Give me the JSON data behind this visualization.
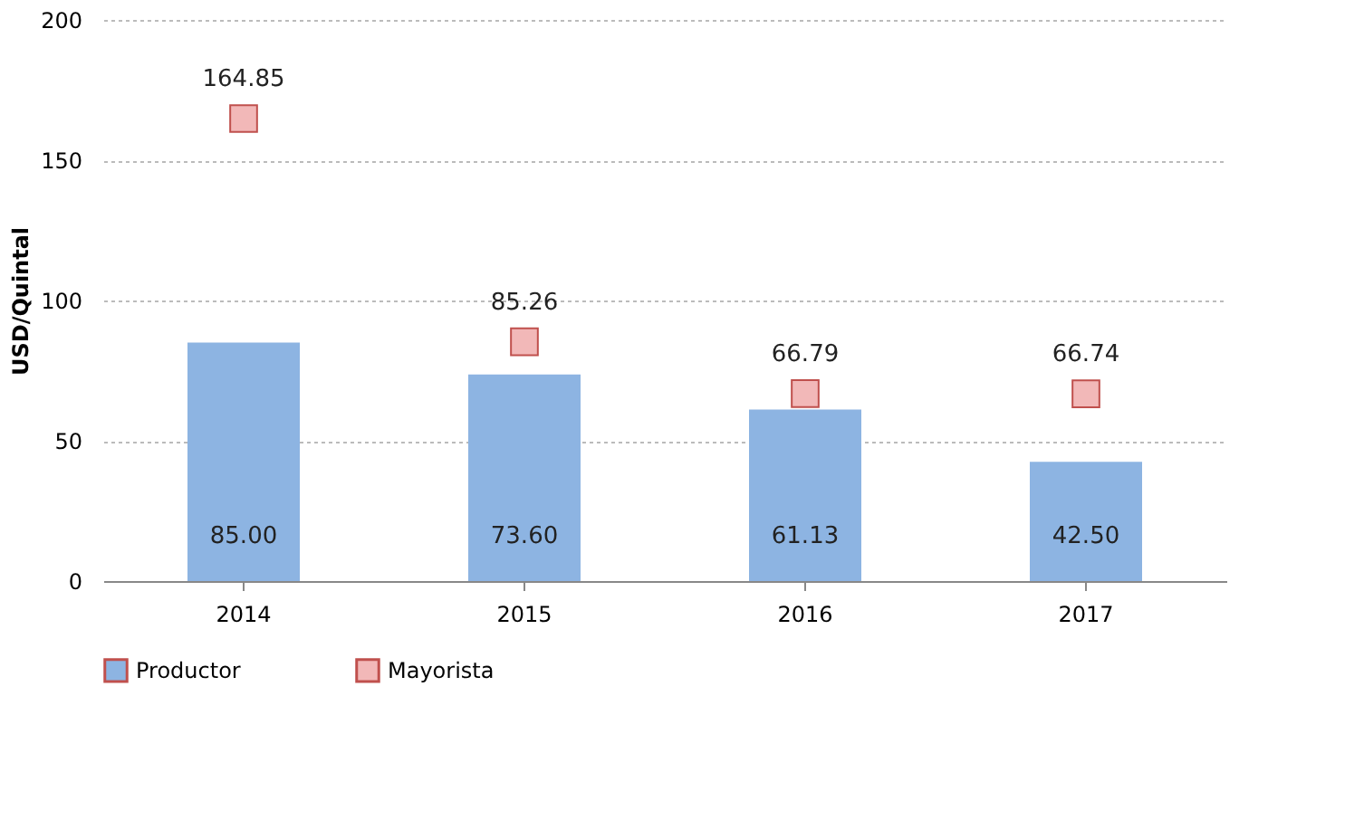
{
  "chart_data": {
    "type": "bar",
    "ylabel": "USD/Quintal",
    "categories": [
      "2014",
      "2015",
      "2016",
      "2017"
    ],
    "series": [
      {
        "name": "Productor",
        "color": "#8db4e2",
        "values": [
          85.0,
          73.6,
          61.13,
          42.5
        ],
        "value_labels": [
          "85.00",
          "73.60",
          "61.13",
          "42.50"
        ]
      },
      {
        "name": "Mayorista",
        "type": "scatter",
        "marker": "square",
        "color": "#f2b8b8",
        "values": [
          164.85,
          85.26,
          66.79,
          66.74
        ],
        "value_labels": [
          "164.85",
          "85.26",
          "66.79",
          "66.74"
        ]
      }
    ],
    "ylim": [
      0,
      200
    ],
    "yticks": [
      0,
      50,
      100,
      150,
      200
    ],
    "grid": "y",
    "legend": "bottom"
  }
}
